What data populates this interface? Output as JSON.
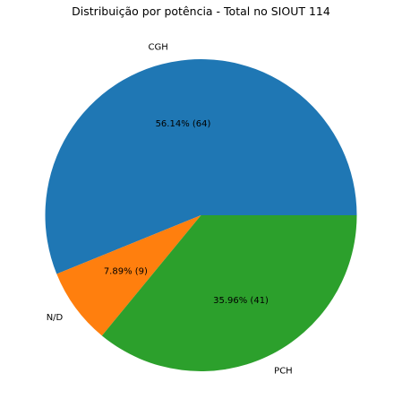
{
  "chart_data": {
    "type": "pie",
    "title": "Distribuição por potência - Total no SIOUT 114",
    "slices": [
      {
        "label": "CGH",
        "value": 64,
        "pct_text": "56.14%  (64)",
        "color": "#1f77b4"
      },
      {
        "label": "N/D",
        "value": 9,
        "pct_text": "7.89%  (9)",
        "color": "#ff7f0e"
      },
      {
        "label": "PCH",
        "value": 41,
        "pct_text": "35.96%  (41)",
        "color": "#2ca02c"
      }
    ],
    "start_angle_deg": 0,
    "direction": "counterclockwise",
    "legend": "none"
  }
}
